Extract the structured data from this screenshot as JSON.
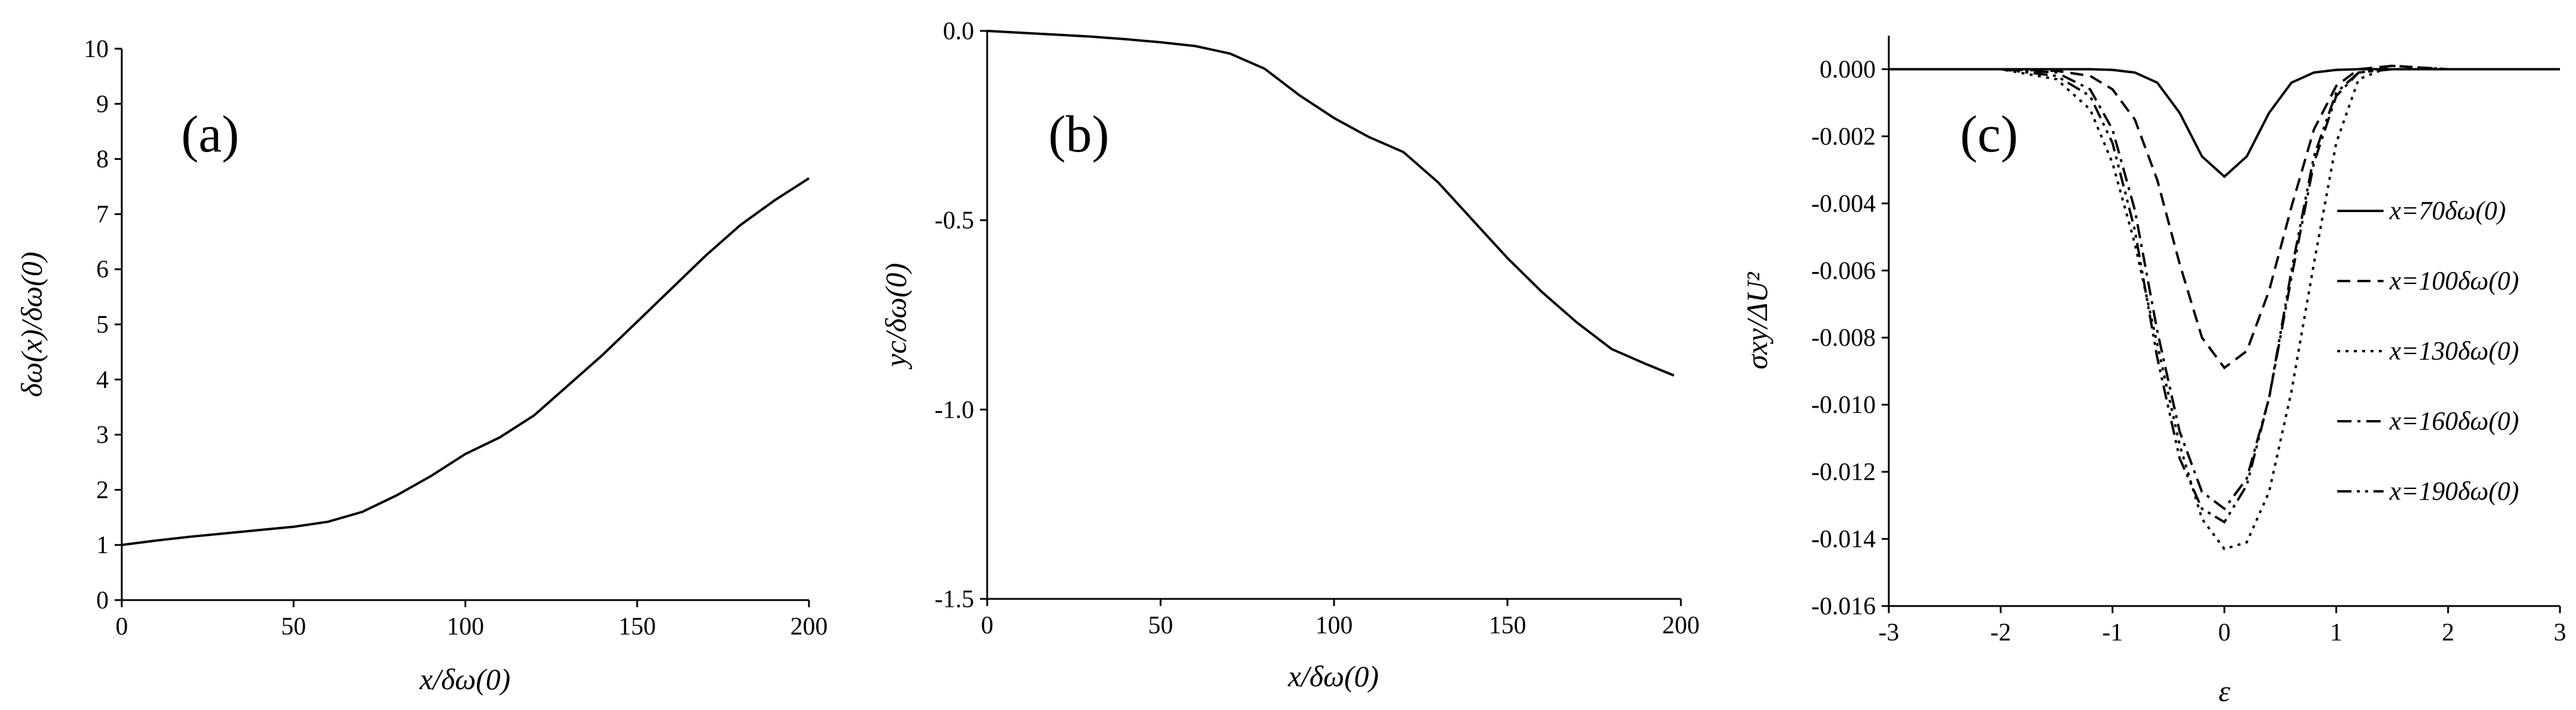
{
  "chart_data": [
    {
      "type": "line",
      "panel_label": "(a)",
      "xlabel": "x/δω(0)",
      "ylabel": "δω(x)/δω(0)",
      "xlim": [
        0,
        200
      ],
      "ylim": [
        0,
        10
      ],
      "xticks": [
        0,
        50,
        100,
        150,
        200
      ],
      "yticks": [
        0,
        1,
        2,
        3,
        4,
        5,
        6,
        7,
        8,
        9,
        10
      ],
      "tick_labels_x": [
        "0",
        "50",
        "100",
        "150",
        "200"
      ],
      "tick_labels_y": [
        "0",
        "1",
        "2",
        "3",
        "4",
        "5",
        "6",
        "7",
        "8",
        "9",
        "10"
      ],
      "series": [
        {
          "x": [
            0,
            10,
            20,
            30,
            40,
            50,
            60,
            70,
            80,
            90,
            100,
            110,
            120,
            130,
            140,
            150,
            160,
            170,
            180,
            190,
            200
          ],
          "values": [
            1.0,
            1.08,
            1.15,
            1.21,
            1.27,
            1.33,
            1.42,
            1.6,
            1.9,
            2.25,
            2.65,
            2.95,
            3.35,
            3.9,
            4.45,
            5.05,
            5.65,
            6.25,
            6.8,
            7.25,
            7.65
          ]
        }
      ]
    },
    {
      "type": "line",
      "panel_label": "(b)",
      "xlabel": "x/δω(0)",
      "ylabel": "yc/δω(0)",
      "xlim": [
        0,
        200
      ],
      "ylim": [
        -1.5,
        0.0
      ],
      "xticks": [
        0,
        50,
        100,
        150,
        200
      ],
      "yticks": [
        -1.5,
        -1.0,
        -0.5,
        0.0
      ],
      "tick_labels_x": [
        "0",
        "50",
        "100",
        "150",
        "200"
      ],
      "tick_labels_y": [
        "-1.5",
        "-1.0",
        "-0.5",
        "0.0"
      ],
      "series": [
        {
          "x": [
            0,
            10,
            20,
            30,
            40,
            50,
            60,
            70,
            80,
            90,
            100,
            110,
            120,
            130,
            140,
            150,
            160,
            170,
            180,
            190,
            198
          ],
          "values": [
            0.0,
            -0.005,
            -0.01,
            -0.015,
            -0.022,
            -0.03,
            -0.04,
            -0.06,
            -0.1,
            -0.17,
            -0.23,
            -0.28,
            -0.32,
            -0.4,
            -0.5,
            -0.6,
            -0.69,
            -0.77,
            -0.84,
            -0.88,
            -0.91
          ]
        }
      ]
    },
    {
      "type": "line",
      "panel_label": "(c)",
      "xlabel": "ε",
      "ylabel": "σxy/ΔU²",
      "xlim": [
        -3,
        3
      ],
      "ylim": [
        -0.016,
        0.001
      ],
      "xticks": [
        -3,
        -2,
        -1,
        0,
        1,
        2,
        3
      ],
      "yticks": [
        -0.016,
        -0.014,
        -0.012,
        -0.01,
        -0.008,
        -0.006,
        -0.004,
        -0.002,
        0.0
      ],
      "tick_labels_x": [
        "-3",
        "-2",
        "-1",
        "0",
        "1",
        "2",
        "3"
      ],
      "tick_labels_y": [
        "-0.016",
        "-0.014",
        "-0.012",
        "-0.010",
        "-0.008",
        "-0.006",
        "-0.004",
        "-0.002",
        "0.000"
      ],
      "legend_position": "right",
      "x": [
        -3.0,
        -2.0,
        -1.5,
        -1.2,
        -1.0,
        -0.8,
        -0.6,
        -0.4,
        -0.2,
        0.0,
        0.2,
        0.4,
        0.6,
        0.8,
        1.0,
        1.2,
        1.5,
        2.0,
        3.0
      ],
      "series": [
        {
          "name": "x=70δω(0)",
          "dash": "solid",
          "values": [
            0.0,
            0.0,
            0.0,
            0.0,
            -2e-05,
            -0.0001,
            -0.0004,
            -0.0013,
            -0.0026,
            -0.0032,
            -0.0026,
            -0.0013,
            -0.0004,
            -0.0001,
            -2e-05,
            0.0,
            0.0,
            0.0,
            0.0
          ]
        },
        {
          "name": "x=100δω(0)",
          "dash": "dash",
          "values": [
            0.0,
            0.0,
            -5e-05,
            -0.0002,
            -0.0006,
            -0.0015,
            -0.0033,
            -0.0058,
            -0.008,
            -0.0089,
            -0.0084,
            -0.0066,
            -0.0041,
            -0.0018,
            -0.0005,
            0.0,
            0.0001,
            0.0,
            0.0
          ]
        },
        {
          "name": "x=130δω(0)",
          "dash": "dot",
          "values": [
            0.0,
            0.0,
            -0.0003,
            -0.0012,
            -0.0028,
            -0.0052,
            -0.0082,
            -0.0112,
            -0.0134,
            -0.0143,
            -0.0141,
            -0.0126,
            -0.0096,
            -0.0058,
            -0.0022,
            -0.0003,
            0.0001,
            0.0,
            0.0
          ]
        },
        {
          "name": "x=160δω(0)",
          "dash": "dashdot",
          "values": [
            0.0,
            0.0,
            -0.0001,
            -0.0006,
            -0.0018,
            -0.0042,
            -0.0078,
            -0.0108,
            -0.0126,
            -0.0131,
            -0.0122,
            -0.0098,
            -0.0062,
            -0.0028,
            -0.0008,
            -0.0001,
            0.0,
            0.0,
            0.0
          ]
        },
        {
          "name": "x=190δω(0)",
          "dash": "dashdotdot",
          "values": [
            0.0,
            0.0,
            -0.0002,
            -0.0008,
            -0.0022,
            -0.0048,
            -0.0086,
            -0.0116,
            -0.0131,
            -0.0135,
            -0.0124,
            -0.0098,
            -0.006,
            -0.0026,
            -0.0007,
            -0.0001,
            0.0,
            0.0,
            0.0
          ]
        }
      ]
    }
  ]
}
